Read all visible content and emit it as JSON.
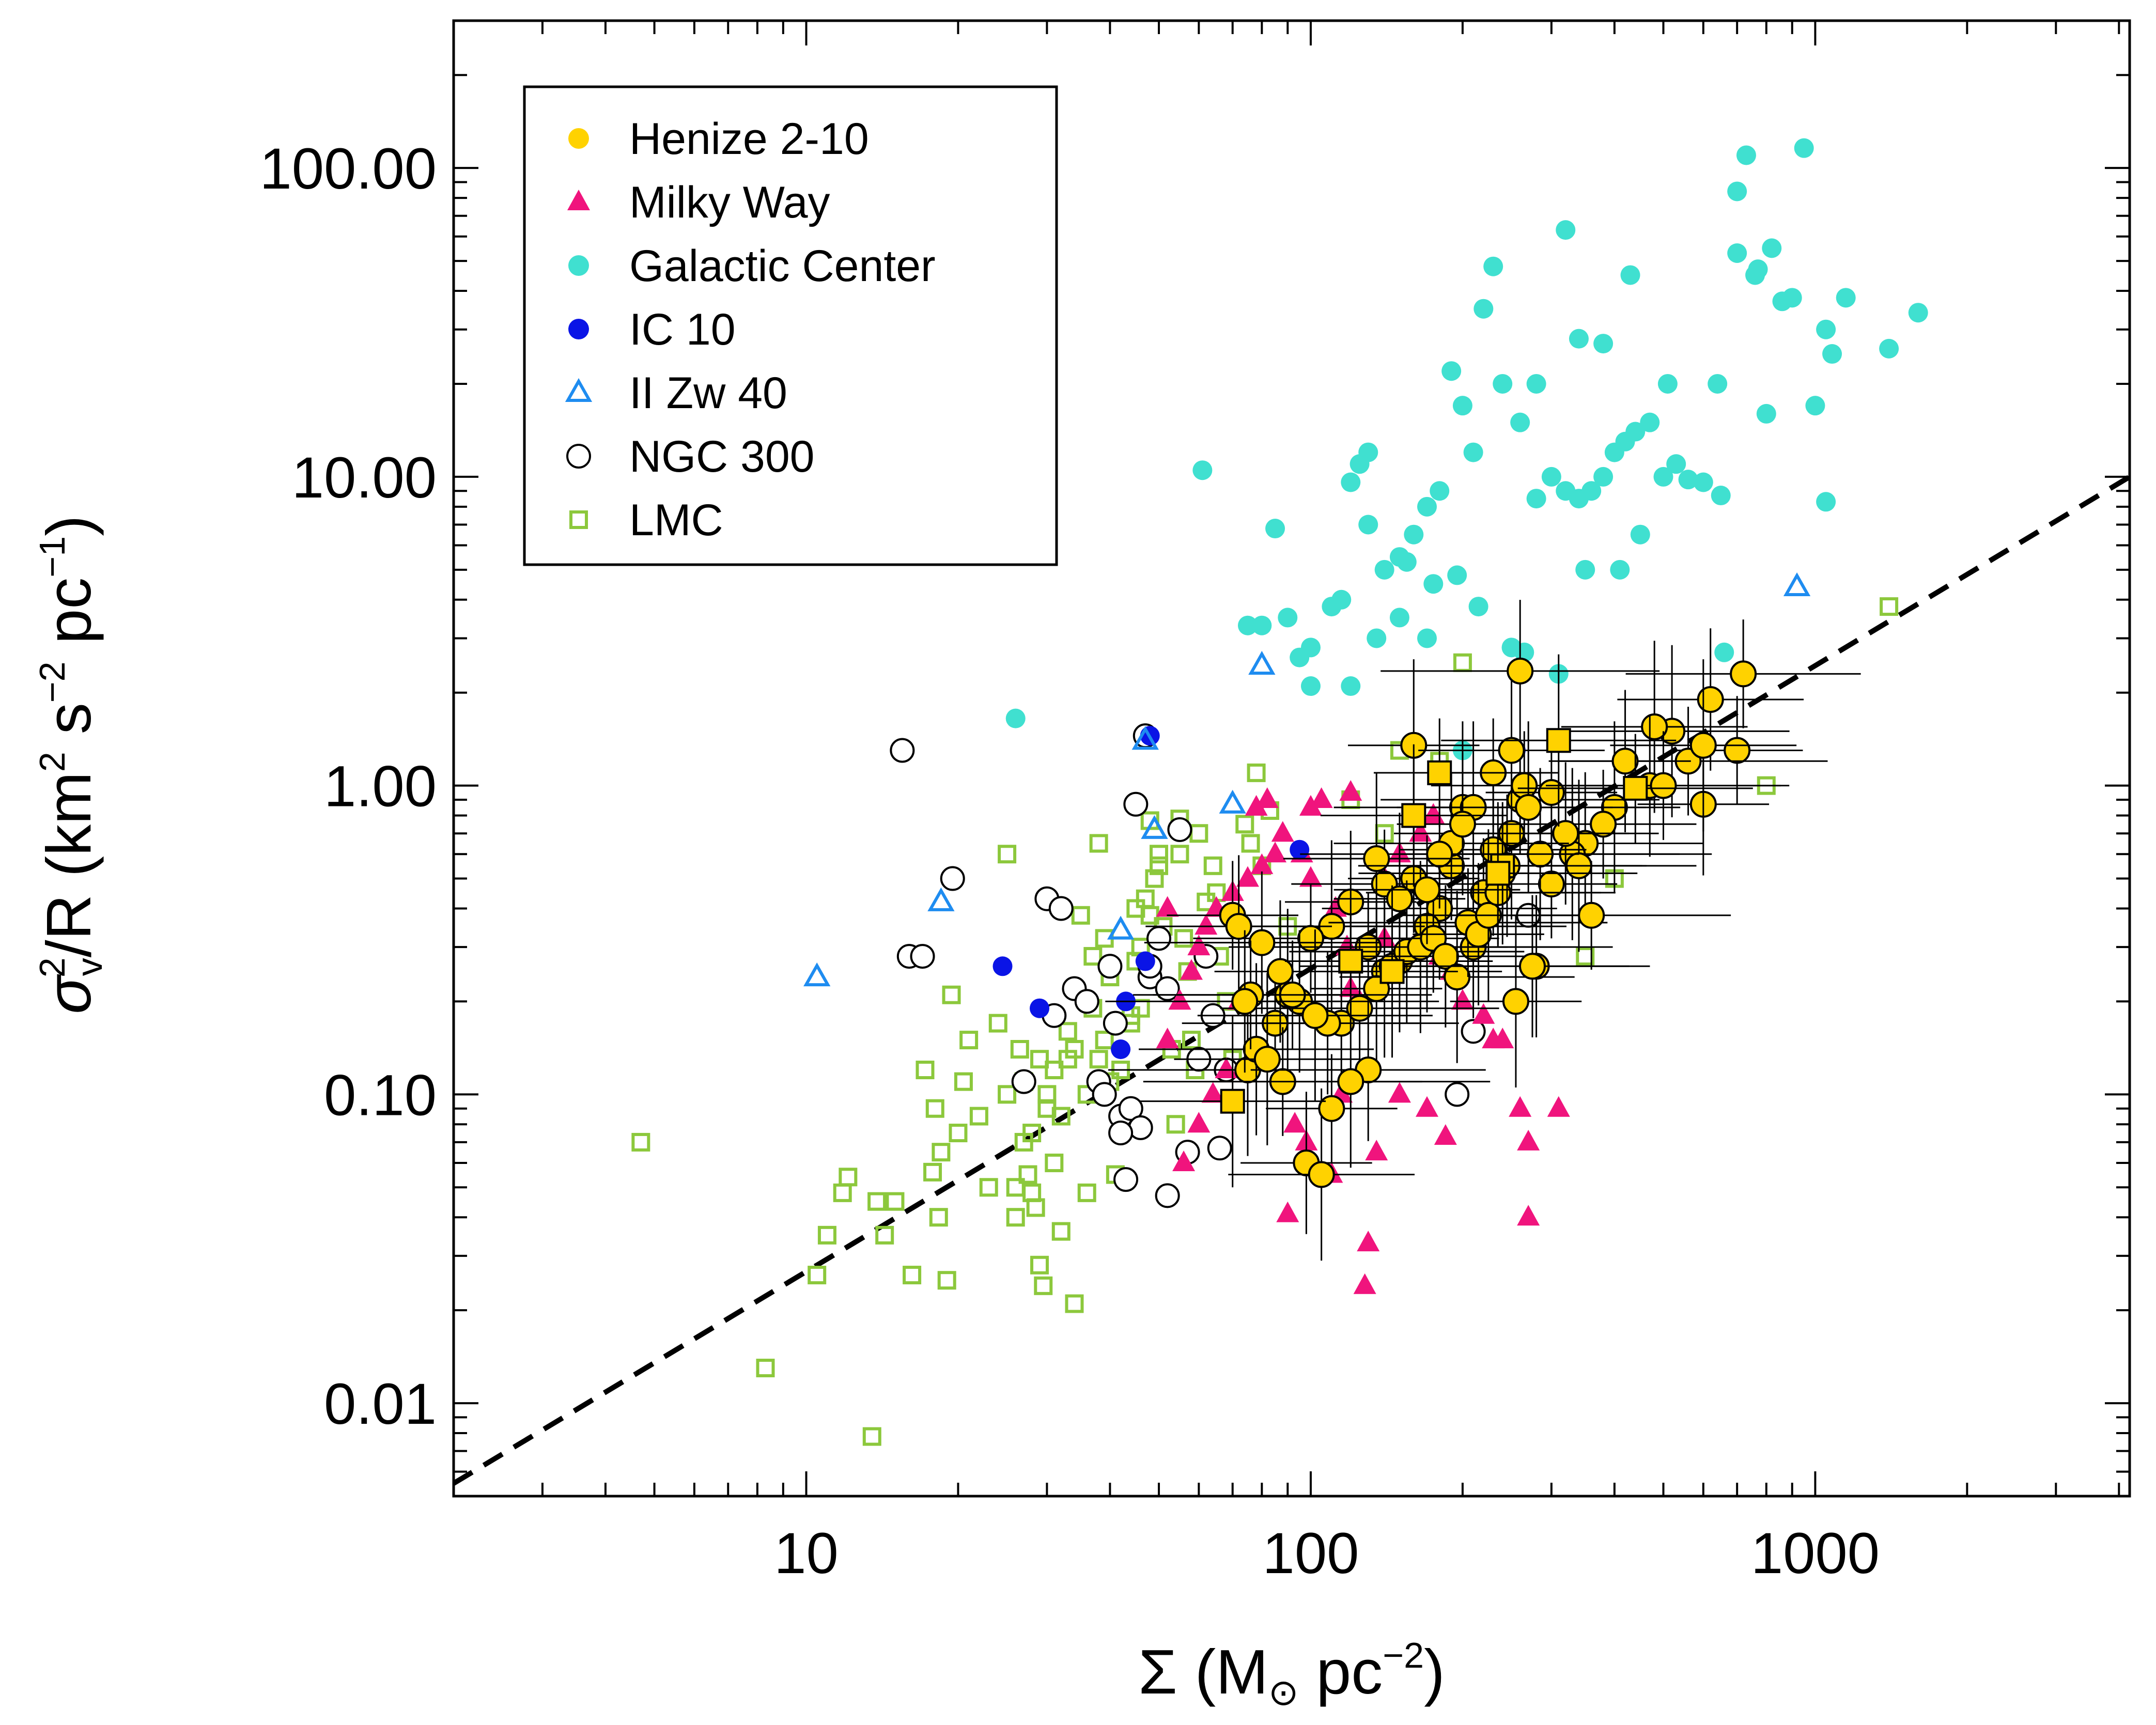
{
  "chart_data": {
    "type": "scatter",
    "xscale": "log",
    "yscale": "log",
    "xlim": [
      2.0,
      4200
    ],
    "ylim": [
      0.005,
      300
    ],
    "xticks": [
      10,
      100,
      1000
    ],
    "xtick_labels": [
      "10",
      "100",
      "1000"
    ],
    "yticks": [
      0.01,
      0.1,
      1,
      10,
      100
    ],
    "ytick_labels": [
      "0.01",
      "0.10",
      "1.00",
      "10.00",
      "100.00"
    ],
    "xlabel": {
      "main": "Σ (M",
      "sub": "⊙",
      "tail": " pc",
      "sup": "−2",
      "end": ")"
    },
    "ylabel": {
      "sigma": "σ",
      "sub": "v",
      "sup": "2",
      "mid": "/R  (km",
      "sup2": "2",
      "s": " s",
      "sup3": "−2",
      "pc": " pc",
      "sup4": "−1",
      "end": ")"
    },
    "legend": {
      "position": "top-left",
      "entries": [
        {
          "label": "Henize 2-10",
          "marker": "filled-circle",
          "color": "#FFD200"
        },
        {
          "label": "Milky Way",
          "marker": "filled-triangle",
          "color": "#F0147D"
        },
        {
          "label": "Galactic Center",
          "marker": "filled-circle",
          "color": "#40E0D0"
        },
        {
          "label": "IC 10",
          "marker": "filled-circle",
          "color": "#0A14E6"
        },
        {
          "label": "II Zw 40",
          "marker": "open-triangle",
          "color": "#1E8CF0"
        },
        {
          "label": "NGC 300",
          "marker": "open-circle",
          "color": "#000000"
        },
        {
          "label": "LMC",
          "marker": "open-square",
          "color": "#8CC83C"
        }
      ]
    },
    "reference_line": {
      "style": "dashed",
      "points": [
        [
          2.0,
          0.0055
        ],
        [
          4200,
          10.0
        ]
      ]
    },
    "series": [
      {
        "name": "Henize 2-10",
        "marker": "filled-circle-outlined",
        "color": "#FFD200",
        "x": [
          700,
          620,
          520,
          560,
          600,
          480,
          720,
          470,
          400,
          380,
          350,
          330,
          300,
          280,
          250,
          260,
          240,
          230,
          220,
          210,
          200,
          190,
          180,
          170,
          160,
          150,
          140,
          130,
          120,
          110,
          100,
          95,
          90,
          85,
          80,
          75,
          70,
          72,
          78,
          88,
          98,
          105,
          115,
          125,
          135,
          145,
          155,
          165,
          175,
          185,
          195,
          205,
          215,
          225,
          235,
          245,
          255,
          265,
          275,
          285,
          300,
          320,
          340,
          360,
          420,
          600,
          500,
          260,
          160,
          140,
          130,
          120,
          110,
          108,
          102,
          92,
          87,
          82,
          76,
          74,
          150,
          170,
          190,
          210,
          230,
          250,
          270,
          180,
          200,
          135
        ],
        "y": [
          1.3,
          1.9,
          1.5,
          1.2,
          0.87,
          1.55,
          2.3,
          1.0,
          0.85,
          0.75,
          0.65,
          0.6,
          0.48,
          0.26,
          0.7,
          0.9,
          0.52,
          0.62,
          0.45,
          0.3,
          0.85,
          0.55,
          0.4,
          0.35,
          0.5,
          0.27,
          0.25,
          0.3,
          0.42,
          0.35,
          0.32,
          0.2,
          0.21,
          0.17,
          0.31,
          0.12,
          0.38,
          0.35,
          0.14,
          0.11,
          0.06,
          0.055,
          0.17,
          0.19,
          0.22,
          0.26,
          0.29,
          0.3,
          0.32,
          0.28,
          0.24,
          0.36,
          0.33,
          0.38,
          0.45,
          0.55,
          0.2,
          1.0,
          0.26,
          0.6,
          0.95,
          0.7,
          0.55,
          0.38,
          1.2,
          1.35,
          1.0,
          2.35,
          1.35,
          0.48,
          0.12,
          0.11,
          0.09,
          0.17,
          0.18,
          0.21,
          0.25,
          0.13,
          0.21,
          0.2,
          0.43,
          0.46,
          0.65,
          0.85,
          1.1,
          1.3,
          0.85,
          0.6,
          0.75,
          0.58
        ]
      },
      {
        "name": "Henize 2-10 (squares)",
        "marker": "filled-square-outlined",
        "color": "#FFD200",
        "x": [
          180,
          160,
          310,
          240,
          120,
          70,
          440,
          235,
          145
        ],
        "y": [
          1.1,
          0.8,
          1.4,
          0.55,
          0.27,
          0.095,
          0.98,
          0.52,
          0.25
        ]
      },
      {
        "name": "Milky Way",
        "marker": "filled-triangle",
        "color": "#F0147D",
        "x": [
          260,
          310,
          270,
          270,
          130,
          128,
          115,
          90,
          110,
          98,
          93,
          85,
          80,
          75,
          70,
          65,
          62,
          60,
          58,
          55,
          52,
          105,
          120,
          140,
          160,
          180,
          200,
          220,
          240,
          150,
          170,
          185,
          135,
          125,
          118,
          112,
          100,
          96,
          88,
          82,
          78,
          72,
          68,
          64,
          60,
          56,
          52,
          150,
          165,
          175,
          190,
          210,
          230,
          100,
          120,
          140
        ],
        "y": [
          0.09,
          0.09,
          0.07,
          0.04,
          0.033,
          0.024,
          0.1,
          0.041,
          0.055,
          0.07,
          0.08,
          0.6,
          0.55,
          0.5,
          0.45,
          0.4,
          0.35,
          0.3,
          0.25,
          0.2,
          0.15,
          0.9,
          0.95,
          0.5,
          0.3,
          0.28,
          0.2,
          0.18,
          0.15,
          0.1,
          0.09,
          0.073,
          0.065,
          0.2,
          0.3,
          0.4,
          0.5,
          0.6,
          0.7,
          0.9,
          0.85,
          0.2,
          0.12,
          0.1,
          0.08,
          0.06,
          0.4,
          0.6,
          0.7,
          0.8,
          0.25,
          0.35,
          0.15,
          0.85,
          0.22,
          0.32
        ]
      },
      {
        "name": "Galactic Center",
        "marker": "filled-circle",
        "color": "#40E0D0",
        "x": [
          950,
          730,
          860,
          700,
          770,
          1150,
          1050,
          1050,
          1600,
          1400,
          1000,
          800,
          900,
          700,
          640,
          600,
          560,
          530,
          500,
          470,
          440,
          420,
          400,
          380,
          360,
          340,
          320,
          300,
          280,
          260,
          240,
          220,
          210,
          200,
          190,
          180,
          170,
          160,
          150,
          140,
          130,
          125,
          120,
          115,
          110,
          100,
          95,
          90,
          85,
          80,
          75,
          61,
          26,
          200,
          250,
          310,
          350,
          410,
          450,
          510,
          650,
          660,
          760,
          820,
          1080,
          280,
          320,
          380,
          430,
          230,
          170,
          150,
          135,
          175,
          195,
          215,
          265,
          340,
          120,
          100,
          130,
          155
        ],
        "y": [
          116,
          110,
          37,
          84,
          47,
          38,
          30,
          8.3,
          34,
          26,
          17,
          16,
          38,
          53,
          20,
          9.6,
          9.8,
          11,
          10,
          15,
          14,
          13,
          12,
          10,
          9,
          8.5,
          9,
          10,
          8.5,
          15,
          20,
          35,
          12,
          17,
          22,
          9,
          8,
          6.5,
          5.5,
          5,
          7,
          11,
          9.6,
          4,
          3.8,
          2.1,
          2.6,
          3.5,
          6.8,
          3.3,
          3.3,
          10.5,
          1.65,
          1.3,
          2.8,
          2.3,
          5,
          5,
          6.5,
          20,
          8.7,
          2.7,
          45,
          55,
          25,
          20,
          63,
          27,
          45,
          48,
          3,
          3.5,
          3,
          4.5,
          4.8,
          3.8,
          2.7,
          28,
          2.1,
          2.8,
          12,
          5.3
        ]
      },
      {
        "name": "IC 10",
        "marker": "filled-circle",
        "color": "#0A14E6",
        "x": [
          24.5,
          29,
          43,
          47,
          42,
          95,
          255,
          48
        ],
        "y": [
          0.26,
          0.19,
          0.2,
          0.27,
          0.14,
          0.62,
          1.3,
          1.45
        ]
      },
      {
        "name": "II Zw 40",
        "marker": "open-triangle",
        "color": "#1E8CF0",
        "x": [
          10.5,
          18.5,
          42,
          49,
          47,
          70,
          80,
          920
        ],
        "y": [
          0.24,
          0.42,
          0.34,
          0.72,
          1.4,
          0.87,
          2.45,
          4.4
        ]
      },
      {
        "name": "NGC 300",
        "marker": "open-circle",
        "color": "#000000",
        "x": [
          15.5,
          16,
          17,
          19.5,
          30,
          31,
          32,
          34,
          36,
          38,
          40,
          42,
          44,
          46,
          48,
          50,
          52,
          55,
          57,
          60,
          62,
          64,
          66,
          68,
          41,
          45,
          43,
          27,
          39,
          47,
          195,
          210,
          270,
          42,
          52,
          48
        ],
        "y": [
          1.3,
          0.28,
          0.28,
          0.5,
          0.43,
          0.18,
          0.4,
          0.22,
          0.2,
          0.11,
          0.26,
          0.085,
          0.09,
          0.078,
          0.24,
          0.32,
          0.047,
          0.72,
          0.065,
          0.13,
          0.28,
          0.18,
          0.067,
          0.12,
          0.17,
          0.87,
          0.053,
          0.11,
          0.1,
          1.45,
          0.1,
          0.16,
          0.38,
          0.075,
          0.22,
          0.26
        ]
      },
      {
        "name": "LMC",
        "marker": "open-square",
        "color": "#8CC83C",
        "x": [
          4.7,
          8.3,
          10.5,
          11,
          11.8,
          12.1,
          13.5,
          13.8,
          14.3,
          15,
          16.2,
          17.2,
          17.8,
          18,
          18.3,
          18.5,
          19,
          19.4,
          20,
          20.5,
          21,
          22,
          23,
          24,
          25,
          26,
          26.5,
          27,
          27.5,
          28,
          28.5,
          29,
          29.5,
          30,
          31,
          32,
          33,
          34,
          35,
          36,
          37,
          38,
          39,
          40,
          41,
          42,
          43,
          44,
          45,
          46,
          47,
          48,
          49,
          50,
          51,
          52,
          53,
          54,
          55,
          56,
          57,
          58,
          59,
          60,
          62,
          64,
          66,
          68,
          70,
          74,
          78,
          83,
          150,
          200,
          1400,
          800,
          350,
          400,
          160,
          140,
          180,
          120,
          80,
          90,
          76,
          65,
          40,
          36,
          32,
          30,
          28,
          26,
          45,
          50,
          55,
          38,
          34,
          33,
          31,
          29,
          27,
          25,
          39,
          37,
          48,
          46,
          44
        ],
        "y": [
          0.07,
          0.013,
          0.026,
          0.035,
          0.048,
          0.054,
          0.0078,
          0.045,
          0.035,
          0.045,
          0.026,
          0.12,
          0.056,
          0.09,
          0.04,
          0.065,
          0.025,
          0.21,
          0.075,
          0.11,
          0.15,
          0.085,
          0.05,
          0.17,
          0.6,
          0.04,
          0.14,
          0.07,
          0.055,
          0.048,
          0.043,
          0.028,
          0.024,
          0.1,
          0.06,
          0.036,
          0.13,
          0.021,
          0.38,
          0.048,
          0.19,
          0.65,
          0.15,
          0.24,
          0.055,
          0.12,
          0.085,
          0.18,
          0.27,
          0.3,
          0.43,
          0.77,
          0.5,
          0.6,
          0.35,
          0.22,
          0.14,
          0.08,
          0.78,
          0.32,
          0.25,
          0.15,
          0.12,
          0.7,
          0.42,
          0.55,
          0.28,
          0.2,
          0.13,
          0.75,
          1.1,
          0.83,
          1.3,
          2.5,
          3.8,
          1.0,
          0.28,
          0.5,
          0.8,
          0.7,
          1.2,
          0.9,
          0.55,
          0.35,
          0.65,
          0.45,
          0.11,
          0.1,
          0.085,
          0.09,
          0.075,
          0.05,
          0.4,
          0.55,
          0.6,
          0.13,
          0.14,
          0.16,
          0.12,
          0.13,
          0.11,
          0.1,
          0.32,
          0.28,
          0.38,
          0.19,
          0.17
        ]
      }
    ]
  }
}
